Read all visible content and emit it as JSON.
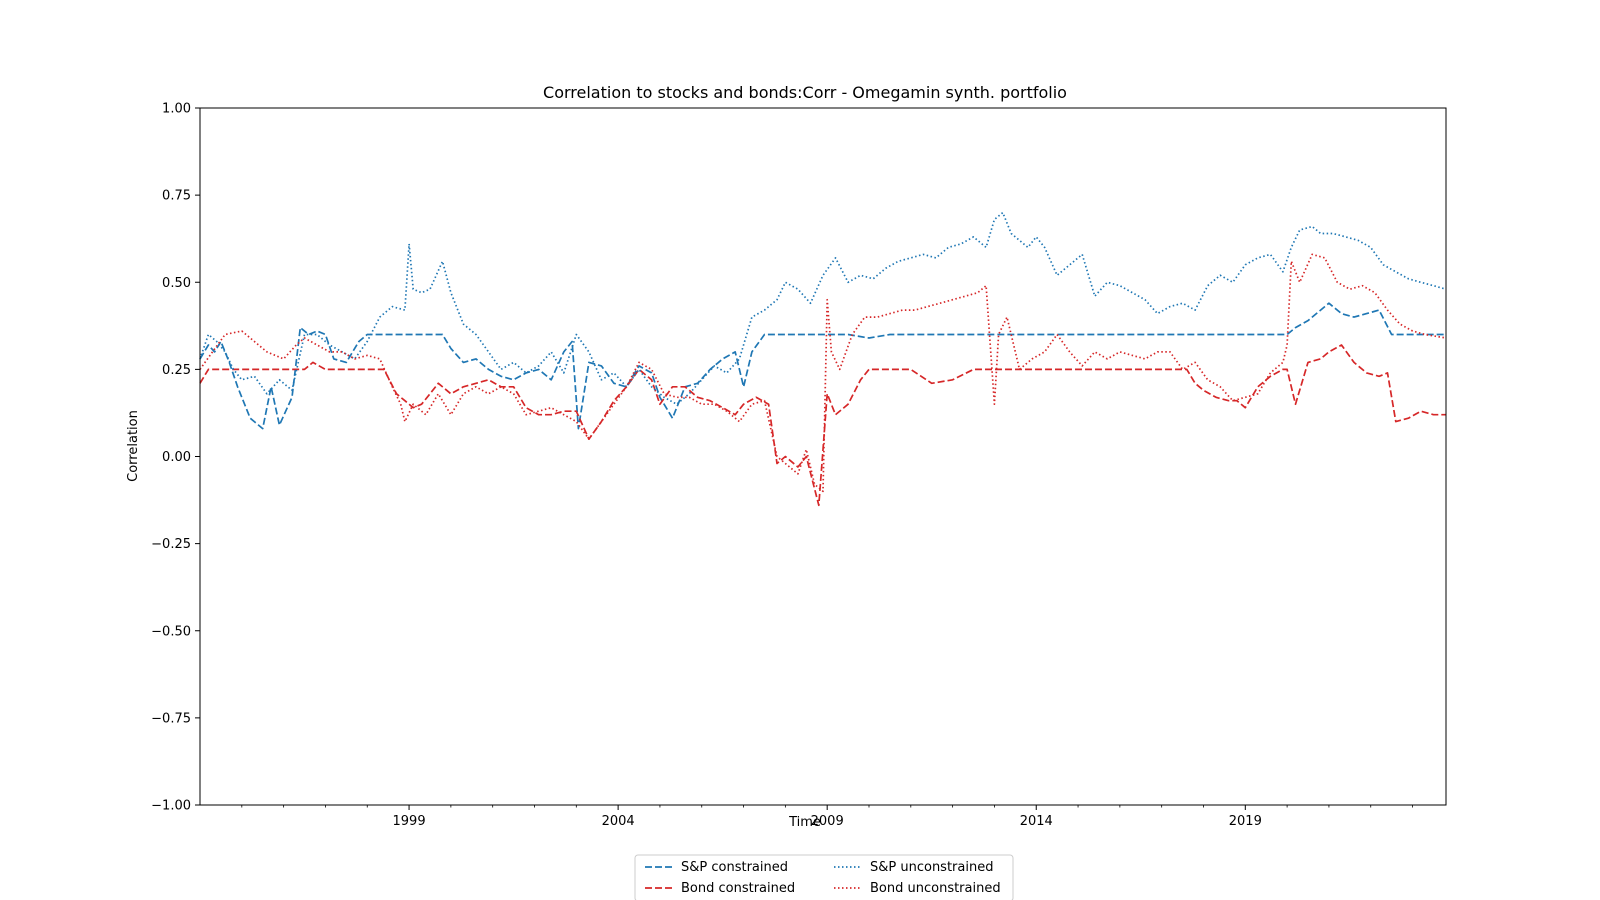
{
  "chart_data": {
    "type": "line",
    "title": "Correlation to stocks and bonds:Corr - Omegamin synth. portfolio",
    "xlabel": "Time",
    "ylabel": "Correlation",
    "xlim": [
      1994.0,
      2023.8
    ],
    "ylim": [
      -1.0,
      1.0
    ],
    "x_ticks": [
      1999,
      2004,
      2009,
      2014,
      2019
    ],
    "x_tick_labels": [
      "1999",
      "2004",
      "2009",
      "2014",
      "2019"
    ],
    "y_ticks": [
      -1.0,
      -0.75,
      -0.5,
      -0.25,
      0.0,
      0.25,
      0.5,
      0.75,
      1.0
    ],
    "y_tick_labels": [
      "−1.00",
      "−0.75",
      "−0.50",
      "−0.25",
      "0.00",
      "0.25",
      "0.50",
      "0.75",
      "1.00"
    ],
    "grid": false,
    "legend_position": "bottom-center-outside",
    "series": [
      {
        "name": "S&P constrained",
        "color": "#1f77b4",
        "dash": "dashed",
        "x": [
          1994.0,
          1994.2,
          1994.35,
          1994.5,
          1994.7,
          1994.9,
          1995.2,
          1995.5,
          1995.7,
          1995.9,
          1996.2,
          1996.4,
          1996.6,
          1996.8,
          1997.0,
          1997.2,
          1997.5,
          1997.8,
          1998.0,
          1998.2,
          1998.5,
          1998.8,
          1999.0,
          1999.5,
          1999.8,
          2000.0,
          2000.3,
          2000.6,
          2000.9,
          2001.2,
          2001.5,
          2001.8,
          2002.1,
          2002.4,
          2002.7,
          2002.9,
          2003.05,
          2003.3,
          2003.6,
          2003.9,
          2004.2,
          2004.5,
          2004.8,
          2005.0,
          2005.3,
          2005.6,
          2005.9,
          2006.2,
          2006.5,
          2006.8,
          2007.0,
          2007.2,
          2007.5,
          2007.8,
          2008.0,
          2008.5,
          2009.0,
          2009.5,
          2010.0,
          2010.5,
          2011.0,
          2012.0,
          2013.0,
          2014.0,
          2015.0,
          2016.0,
          2017.0,
          2018.0,
          2019.0,
          2020.0,
          2020.2,
          2020.5,
          2020.8,
          2021.0,
          2021.3,
          2021.6,
          2021.9,
          2022.2,
          2022.5,
          2022.7,
          2022.9,
          2023.2,
          2023.5,
          2023.8
        ],
        "y": [
          0.28,
          0.32,
          0.3,
          0.33,
          0.27,
          0.2,
          0.11,
          0.08,
          0.2,
          0.09,
          0.17,
          0.37,
          0.35,
          0.36,
          0.35,
          0.28,
          0.27,
          0.33,
          0.35,
          0.35,
          0.35,
          0.35,
          0.35,
          0.35,
          0.35,
          0.31,
          0.27,
          0.28,
          0.25,
          0.23,
          0.22,
          0.24,
          0.25,
          0.22,
          0.3,
          0.33,
          0.08,
          0.27,
          0.26,
          0.21,
          0.2,
          0.26,
          0.24,
          0.17,
          0.11,
          0.2,
          0.21,
          0.25,
          0.28,
          0.3,
          0.2,
          0.3,
          0.35,
          0.35,
          0.35,
          0.35,
          0.35,
          0.35,
          0.34,
          0.35,
          0.35,
          0.35,
          0.35,
          0.35,
          0.35,
          0.35,
          0.35,
          0.35,
          0.35,
          0.35,
          0.37,
          0.39,
          0.42,
          0.44,
          0.41,
          0.4,
          0.41,
          0.42,
          0.35,
          0.35,
          0.35,
          0.35,
          0.35,
          0.35
        ]
      },
      {
        "name": "Bond constrained",
        "color": "#d62728",
        "dash": "dashed",
        "x": [
          1994.0,
          1994.2,
          1994.5,
          1995.0,
          1995.5,
          1996.0,
          1996.5,
          1996.7,
          1997.0,
          1997.5,
          1998.0,
          1998.4,
          1998.7,
          1998.9,
          1999.1,
          1999.3,
          1999.5,
          1999.7,
          2000.0,
          2000.3,
          2000.6,
          2000.9,
          2001.2,
          2001.5,
          2001.8,
          2002.1,
          2002.4,
          2002.7,
          2003.0,
          2003.3,
          2003.6,
          2003.9,
          2004.2,
          2004.5,
          2004.8,
          2005.0,
          2005.3,
          2005.6,
          2005.9,
          2006.2,
          2006.5,
          2006.8,
          2007.0,
          2007.3,
          2007.6,
          2007.8,
          2008.0,
          2008.3,
          2008.5,
          2008.8,
          2009.0,
          2009.2,
          2009.5,
          2009.8,
          2010.0,
          2010.5,
          2011.0,
          2011.5,
          2012.0,
          2012.5,
          2013.0,
          2014.0,
          2015.0,
          2016.0,
          2017.0,
          2017.6,
          2017.8,
          2018.0,
          2018.3,
          2018.6,
          2018.8,
          2019.0,
          2019.3,
          2019.6,
          2019.9,
          2020.0,
          2020.2,
          2020.5,
          2020.8,
          2021.0,
          2021.3,
          2021.6,
          2021.9,
          2022.2,
          2022.4,
          2022.6,
          2022.9,
          2023.2,
          2023.5,
          2023.8
        ],
        "y": [
          0.21,
          0.25,
          0.25,
          0.25,
          0.25,
          0.25,
          0.25,
          0.27,
          0.25,
          0.25,
          0.25,
          0.25,
          0.18,
          0.16,
          0.14,
          0.15,
          0.18,
          0.21,
          0.18,
          0.2,
          0.21,
          0.22,
          0.2,
          0.2,
          0.14,
          0.12,
          0.12,
          0.13,
          0.13,
          0.05,
          0.1,
          0.16,
          0.2,
          0.25,
          0.22,
          0.15,
          0.2,
          0.2,
          0.17,
          0.16,
          0.14,
          0.12,
          0.15,
          0.17,
          0.15,
          -0.02,
          0.0,
          -0.03,
          0.0,
          -0.14,
          0.18,
          0.12,
          0.15,
          0.22,
          0.25,
          0.25,
          0.25,
          0.21,
          0.22,
          0.25,
          0.25,
          0.25,
          0.25,
          0.25,
          0.25,
          0.25,
          0.21,
          0.19,
          0.17,
          0.16,
          0.16,
          0.14,
          0.2,
          0.23,
          0.25,
          0.25,
          0.15,
          0.27,
          0.28,
          0.3,
          0.32,
          0.27,
          0.24,
          0.23,
          0.24,
          0.1,
          0.11,
          0.13,
          0.12,
          0.12
        ]
      },
      {
        "name": "S&P unconstrained",
        "color": "#1f77b4",
        "dash": "dotted",
        "x": [
          1994.0,
          1994.2,
          1994.4,
          1994.6,
          1994.8,
          1995.0,
          1995.3,
          1995.6,
          1995.9,
          1996.2,
          1996.5,
          1996.8,
          1997.1,
          1997.4,
          1997.7,
          1998.0,
          1998.3,
          1998.6,
          1998.9,
          1999.0,
          1999.1,
          1999.3,
          1999.5,
          1999.8,
          2000.0,
          2000.3,
          2000.6,
          2000.9,
          2001.2,
          2001.5,
          2001.8,
          2002.1,
          2002.4,
          2002.7,
          2003.0,
          2003.3,
          2003.6,
          2003.9,
          2004.2,
          2004.5,
          2004.8,
          2005.1,
          2005.4,
          2005.7,
          2006.0,
          2006.3,
          2006.6,
          2006.9,
          2007.2,
          2007.5,
          2007.8,
          2008.0,
          2008.3,
          2008.6,
          2008.9,
          2009.2,
          2009.5,
          2009.8,
          2010.1,
          2010.4,
          2010.7,
          2011.0,
          2011.3,
          2011.6,
          2011.9,
          2012.2,
          2012.5,
          2012.8,
          2013.0,
          2013.2,
          2013.4,
          2013.6,
          2013.8,
          2014.0,
          2014.2,
          2014.5,
          2014.8,
          2015.1,
          2015.4,
          2015.7,
          2016.0,
          2016.3,
          2016.6,
          2016.9,
          2017.2,
          2017.5,
          2017.8,
          2018.1,
          2018.4,
          2018.7,
          2019.0,
          2019.3,
          2019.6,
          2019.9,
          2020.1,
          2020.3,
          2020.6,
          2020.8,
          2021.1,
          2021.4,
          2021.7,
          2022.0,
          2022.3,
          2022.6,
          2022.9,
          2023.2,
          2023.5,
          2023.8
        ],
        "y": [
          0.28,
          0.35,
          0.33,
          0.3,
          0.25,
          0.22,
          0.23,
          0.18,
          0.22,
          0.19,
          0.35,
          0.35,
          0.32,
          0.3,
          0.28,
          0.33,
          0.4,
          0.43,
          0.42,
          0.61,
          0.48,
          0.47,
          0.48,
          0.56,
          0.47,
          0.38,
          0.35,
          0.3,
          0.25,
          0.27,
          0.24,
          0.26,
          0.3,
          0.24,
          0.35,
          0.3,
          0.22,
          0.24,
          0.2,
          0.25,
          0.2,
          0.17,
          0.15,
          0.18,
          0.22,
          0.26,
          0.24,
          0.28,
          0.4,
          0.42,
          0.45,
          0.5,
          0.48,
          0.44,
          0.52,
          0.57,
          0.5,
          0.52,
          0.51,
          0.54,
          0.56,
          0.57,
          0.58,
          0.57,
          0.6,
          0.61,
          0.63,
          0.6,
          0.68,
          0.7,
          0.64,
          0.62,
          0.6,
          0.63,
          0.6,
          0.52,
          0.55,
          0.58,
          0.46,
          0.5,
          0.49,
          0.47,
          0.45,
          0.41,
          0.43,
          0.44,
          0.42,
          0.49,
          0.52,
          0.5,
          0.55,
          0.57,
          0.58,
          0.53,
          0.6,
          0.65,
          0.66,
          0.64,
          0.64,
          0.63,
          0.62,
          0.6,
          0.55,
          0.53,
          0.51,
          0.5,
          0.49,
          0.48
        ]
      },
      {
        "name": "Bond unconstrained",
        "color": "#d62728",
        "dash": "dotted",
        "x": [
          1994.0,
          1994.3,
          1994.6,
          1995.0,
          1995.3,
          1995.6,
          1996.0,
          1996.3,
          1996.5,
          1996.8,
          1997.1,
          1997.4,
          1997.7,
          1998.0,
          1998.3,
          1998.6,
          1998.8,
          1998.9,
          1999.1,
          1999.4,
          1999.7,
          2000.0,
          2000.3,
          2000.6,
          2000.9,
          2001.2,
          2001.5,
          2001.8,
          2002.1,
          2002.4,
          2002.7,
          2003.0,
          2003.3,
          2003.6,
          2003.9,
          2004.2,
          2004.5,
          2004.8,
          2005.1,
          2005.4,
          2005.7,
          2006.0,
          2006.3,
          2006.6,
          2006.9,
          2007.2,
          2007.5,
          2007.8,
          2008.0,
          2008.3,
          2008.5,
          2008.7,
          2008.9,
          2009.0,
          2009.1,
          2009.3,
          2009.6,
          2009.9,
          2010.2,
          2010.5,
          2010.8,
          2011.1,
          2011.4,
          2011.7,
          2012.0,
          2012.3,
          2012.6,
          2012.8,
          2013.0,
          2013.1,
          2013.3,
          2013.6,
          2013.9,
          2014.2,
          2014.5,
          2014.8,
          2015.1,
          2015.4,
          2015.7,
          2016.0,
          2016.3,
          2016.6,
          2016.9,
          2017.2,
          2017.5,
          2017.8,
          2018.1,
          2018.4,
          2018.7,
          2019.0,
          2019.3,
          2019.6,
          2019.9,
          2020.0,
          2020.1,
          2020.3,
          2020.6,
          2020.9,
          2021.2,
          2021.5,
          2021.8,
          2022.1,
          2022.4,
          2022.7,
          2023.0,
          2023.3,
          2023.8
        ],
        "y": [
          0.25,
          0.3,
          0.35,
          0.36,
          0.33,
          0.3,
          0.28,
          0.32,
          0.34,
          0.32,
          0.3,
          0.3,
          0.28,
          0.29,
          0.28,
          0.2,
          0.15,
          0.1,
          0.15,
          0.12,
          0.18,
          0.12,
          0.18,
          0.2,
          0.18,
          0.2,
          0.18,
          0.12,
          0.13,
          0.14,
          0.12,
          0.1,
          0.05,
          0.1,
          0.15,
          0.2,
          0.27,
          0.25,
          0.18,
          0.17,
          0.17,
          0.15,
          0.15,
          0.13,
          0.1,
          0.15,
          0.16,
          0.0,
          -0.02,
          -0.05,
          0.02,
          -0.08,
          -0.1,
          0.45,
          0.3,
          0.25,
          0.35,
          0.4,
          0.4,
          0.41,
          0.42,
          0.42,
          0.43,
          0.44,
          0.45,
          0.46,
          0.47,
          0.49,
          0.15,
          0.35,
          0.4,
          0.25,
          0.28,
          0.3,
          0.35,
          0.3,
          0.26,
          0.3,
          0.28,
          0.3,
          0.29,
          0.28,
          0.3,
          0.3,
          0.25,
          0.27,
          0.22,
          0.2,
          0.16,
          0.17,
          0.18,
          0.24,
          0.27,
          0.32,
          0.56,
          0.5,
          0.58,
          0.57,
          0.5,
          0.48,
          0.49,
          0.47,
          0.42,
          0.38,
          0.36,
          0.35,
          0.34
        ]
      }
    ]
  }
}
